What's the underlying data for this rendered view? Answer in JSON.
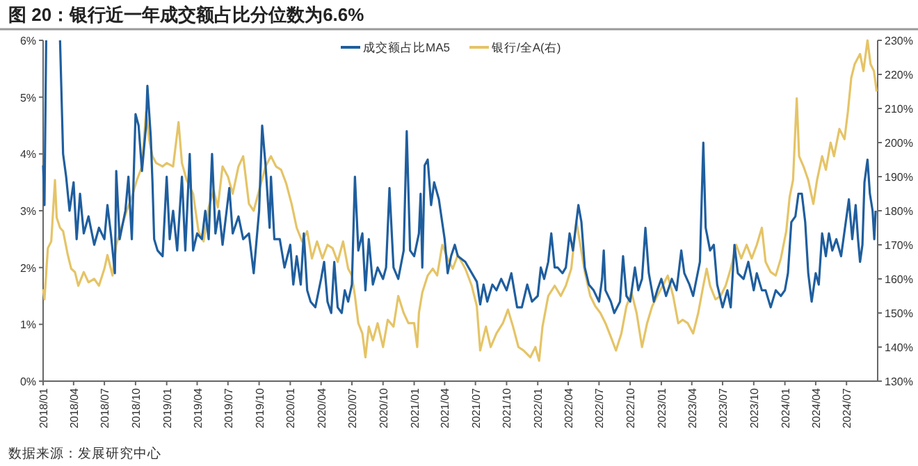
{
  "chart_data": {
    "type": "line",
    "title": "图 20：银行近一年成交额占比分位数为6.6%",
    "annotations": [
      "数据来源：发展研究中心"
    ],
    "xlim": [
      "2018-01-01",
      "2024-10-01"
    ],
    "xticks": [
      {
        "value": "2018-01-01",
        "label": "2018/01"
      },
      {
        "value": "2018-04-01",
        "label": "2018/04"
      },
      {
        "value": "2018-07-01",
        "label": "2018/07"
      },
      {
        "value": "2018-10-01",
        "label": "2018/10"
      },
      {
        "value": "2019-01-01",
        "label": "2019/01"
      },
      {
        "value": "2019-04-01",
        "label": "2019/04"
      },
      {
        "value": "2019-07-01",
        "label": "2019/07"
      },
      {
        "value": "2019-10-01",
        "label": "2019/10"
      },
      {
        "value": "2020-01-01",
        "label": "2020/01"
      },
      {
        "value": "2020-04-01",
        "label": "2020/04"
      },
      {
        "value": "2020-07-01",
        "label": "2020/07"
      },
      {
        "value": "2020-10-01",
        "label": "2020/10"
      },
      {
        "value": "2021-01-01",
        "label": "2021/01"
      },
      {
        "value": "2021-04-01",
        "label": "2021/04"
      },
      {
        "value": "2021-07-01",
        "label": "2021/07"
      },
      {
        "value": "2021-10-01",
        "label": "2021/10"
      },
      {
        "value": "2022-01-01",
        "label": "2022/01"
      },
      {
        "value": "2022-04-01",
        "label": "2022/04"
      },
      {
        "value": "2022-07-01",
        "label": "2022/07"
      },
      {
        "value": "2022-10-01",
        "label": "2022/10"
      },
      {
        "value": "2023-01-01",
        "label": "2023/01"
      },
      {
        "value": "2023-04-01",
        "label": "2023/04"
      },
      {
        "value": "2023-07-01",
        "label": "2023/07"
      },
      {
        "value": "2023-10-01",
        "label": "2023/10"
      },
      {
        "value": "2024-01-01",
        "label": "2024/01"
      },
      {
        "value": "2024-04-01",
        "label": "2024/04"
      },
      {
        "value": "2024-07-01",
        "label": "2024/07"
      }
    ],
    "ylim": [
      0,
      6
    ],
    "yticks": [
      {
        "value": 0,
        "label": "0%"
      },
      {
        "value": 1,
        "label": "1%"
      },
      {
        "value": 2,
        "label": "2%"
      },
      {
        "value": 3,
        "label": "3%"
      },
      {
        "value": 4,
        "label": "4%"
      },
      {
        "value": 5,
        "label": "5%"
      },
      {
        "value": 6,
        "label": "6%"
      }
    ],
    "y2lim": [
      130,
      230
    ],
    "y2ticks": [
      {
        "value": 130,
        "label": "130%"
      },
      {
        "value": 140,
        "label": "140%"
      },
      {
        "value": 150,
        "label": "150%"
      },
      {
        "value": 160,
        "label": "160%"
      },
      {
        "value": 170,
        "label": "170%"
      },
      {
        "value": 180,
        "label": "180%"
      },
      {
        "value": 190,
        "label": "190%"
      },
      {
        "value": 200,
        "label": "200%"
      },
      {
        "value": 210,
        "label": "210%"
      },
      {
        "value": 220,
        "label": "220%"
      },
      {
        "value": 230,
        "label": "230%"
      }
    ],
    "grid": false,
    "legend": "top",
    "marker": "none",
    "line_style": "solid",
    "series": [
      {
        "name": "成交额占比MA5",
        "color": "#1f5e9e",
        "x": [
          "2018-01-01",
          "2018-01-05",
          "2018-01-10",
          "2018-01-25",
          "2018-02-20",
          "2018-03-01",
          "2018-03-10",
          "2018-03-20",
          "2018-04-01",
          "2018-04-10",
          "2018-04-20",
          "2018-05-01",
          "2018-05-15",
          "2018-06-01",
          "2018-06-15",
          "2018-07-01",
          "2018-07-10",
          "2018-07-20",
          "2018-08-01",
          "2018-08-05",
          "2018-08-15",
          "2018-09-01",
          "2018-09-10",
          "2018-09-20",
          "2018-10-01",
          "2018-10-10",
          "2018-10-20",
          "2018-11-01",
          "2018-11-05",
          "2018-11-15",
          "2018-11-20",
          "2018-11-25",
          "2018-12-05",
          "2018-12-20",
          "2019-01-01",
          "2019-01-10",
          "2019-01-20",
          "2019-02-01",
          "2019-02-15",
          "2019-02-25",
          "2019-03-10",
          "2019-03-20",
          "2019-04-01",
          "2019-04-15",
          "2019-04-25",
          "2019-05-05",
          "2019-05-15",
          "2019-05-25",
          "2019-06-05",
          "2019-06-15",
          "2019-06-25",
          "2019-07-05",
          "2019-07-15",
          "2019-08-01",
          "2019-08-15",
          "2019-09-01",
          "2019-09-15",
          "2019-10-01",
          "2019-10-10",
          "2019-10-20",
          "2019-11-01",
          "2019-11-05",
          "2019-11-15",
          "2019-12-01",
          "2019-12-15",
          "2020-01-01",
          "2020-01-10",
          "2020-01-20",
          "2020-02-01",
          "2020-02-10",
          "2020-02-20",
          "2020-03-01",
          "2020-03-15",
          "2020-04-01",
          "2020-04-10",
          "2020-04-20",
          "2020-05-01",
          "2020-05-10",
          "2020-05-20",
          "2020-06-01",
          "2020-06-10",
          "2020-06-20",
          "2020-07-01",
          "2020-07-10",
          "2020-07-20",
          "2020-08-01",
          "2020-08-10",
          "2020-08-20",
          "2020-09-01",
          "2020-09-15",
          "2020-10-01",
          "2020-10-10",
          "2020-10-20",
          "2020-11-01",
          "2020-11-15",
          "2020-12-01",
          "2020-12-10",
          "2020-12-20",
          "2021-01-01",
          "2021-01-15",
          "2021-01-20",
          "2021-01-25",
          "2021-02-01",
          "2021-02-10",
          "2021-02-20",
          "2021-03-01",
          "2021-03-15",
          "2021-04-01",
          "2021-04-10",
          "2021-04-20",
          "2021-05-01",
          "2021-05-10",
          "2021-06-01",
          "2021-07-05",
          "2021-07-15",
          "2021-07-25",
          "2021-08-05",
          "2021-08-20",
          "2021-09-01",
          "2021-09-15",
          "2021-10-01",
          "2021-10-15",
          "2021-11-01",
          "2021-11-15",
          "2021-12-01",
          "2021-12-15",
          "2022-01-01",
          "2022-01-10",
          "2022-01-20",
          "2022-02-01",
          "2022-02-10",
          "2022-02-20",
          "2022-03-01",
          "2022-03-15",
          "2022-03-25",
          "2022-04-05",
          "2022-04-15",
          "2022-05-01",
          "2022-05-10",
          "2022-05-20",
          "2022-06-01",
          "2022-06-15",
          "2022-07-01",
          "2022-07-10",
          "2022-07-15",
          "2022-07-20",
          "2022-08-05",
          "2022-08-15",
          "2022-09-01",
          "2022-09-10",
          "2022-09-20",
          "2022-10-01",
          "2022-10-15",
          "2022-10-25",
          "2022-11-05",
          "2022-11-15",
          "2022-11-25",
          "2022-12-10",
          "2022-12-20",
          "2023-01-01",
          "2023-01-15",
          "2023-02-01",
          "2023-02-15",
          "2023-03-01",
          "2023-03-10",
          "2023-03-25",
          "2023-04-05",
          "2023-04-15",
          "2023-04-25",
          "2023-05-05",
          "2023-05-12",
          "2023-05-25",
          "2023-06-05",
          "2023-06-15",
          "2023-07-01",
          "2023-07-15",
          "2023-07-25",
          "2023-08-05",
          "2023-08-15",
          "2023-09-01",
          "2023-09-15",
          "2023-10-01",
          "2023-10-10",
          "2023-10-25",
          "2023-11-05",
          "2023-11-20",
          "2023-12-05",
          "2023-12-20",
          "2024-01-01",
          "2024-01-10",
          "2024-01-20",
          "2024-02-01",
          "2024-02-10",
          "2024-02-20",
          "2024-03-01",
          "2024-03-10",
          "2024-03-20",
          "2024-04-01",
          "2024-04-10",
          "2024-04-20",
          "2024-05-01",
          "2024-05-10",
          "2024-05-20",
          "2024-06-01",
          "2024-06-15",
          "2024-07-08",
          "2024-07-18",
          "2024-07-28",
          "2024-08-04",
          "2024-08-10",
          "2024-08-17",
          "2024-08-23",
          "2024-09-01",
          "2024-09-08",
          "2024-09-16",
          "2024-09-21",
          "2024-09-25"
        ],
        "values": [
          3.8,
          3.1,
          6.0,
          null,
          6.0,
          4.0,
          3.6,
          3.0,
          3.5,
          2.5,
          3.3,
          2.6,
          2.9,
          2.4,
          2.7,
          2.5,
          3.1,
          2.6,
          1.9,
          3.7,
          2.5,
          3.0,
          3.6,
          2.5,
          4.7,
          4.5,
          3.7,
          4.5,
          5.2,
          4.3,
          3.5,
          2.5,
          2.3,
          2.2,
          3.6,
          2.5,
          3.0,
          2.3,
          3.6,
          2.3,
          4.0,
          2.3,
          2.6,
          2.5,
          3.0,
          2.5,
          4.0,
          2.6,
          3.0,
          2.4,
          2.9,
          3.4,
          2.6,
          2.9,
          2.5,
          2.6,
          1.9,
          3.0,
          4.5,
          3.8,
          2.7,
          3.6,
          2.5,
          2.5,
          2.0,
          2.4,
          1.7,
          2.2,
          1.7,
          2.6,
          1.6,
          1.4,
          1.3,
          1.8,
          2.1,
          1.4,
          1.2,
          2.1,
          1.3,
          1.2,
          1.6,
          1.4,
          1.7,
          3.6,
          2.3,
          2.6,
          1.6,
          2.5,
          1.7,
          2.0,
          1.8,
          2.0,
          3.4,
          2.0,
          1.8,
          2.3,
          4.4,
          2.3,
          2.2,
          2.6,
          3.3,
          2.0,
          3.8,
          3.9,
          3.1,
          3.5,
          3.2,
          2.5,
          1.9,
          2.2,
          2.4,
          2.2,
          2.1,
          1.75,
          1.35,
          1.7,
          1.4,
          1.7,
          1.6,
          1.8,
          1.6,
          1.9,
          1.3,
          1.3,
          1.7,
          1.4,
          1.5,
          2.0,
          1.8,
          2.1,
          2.6,
          2.0,
          2.0,
          1.9,
          2.0,
          2.6,
          2.3,
          3.1,
          2.8,
          2.0,
          1.7,
          1.6,
          1.4,
          1.8,
          2.3,
          1.6,
          1.4,
          1.2,
          1.4,
          2.2,
          1.5,
          1.4,
          2.0,
          1.6,
          1.8,
          2.7,
          1.9,
          1.4,
          1.6,
          1.8,
          1.5,
          1.8,
          1.6,
          2.3,
          1.9,
          1.7,
          1.5,
          1.8,
          2.1,
          4.2,
          2.7,
          2.3,
          2.4,
          1.7,
          1.3,
          1.6,
          1.3,
          2.4,
          1.9,
          1.8,
          2.1,
          1.6,
          1.9,
          1.6,
          1.6,
          1.3,
          1.6,
          1.5,
          1.6,
          1.9,
          2.8,
          2.9,
          3.3,
          3.3,
          2.8,
          1.9,
          1.4,
          1.9,
          1.7,
          2.6,
          2.2,
          2.6,
          2.3,
          2.5,
          2.2,
          3.2,
          2.5,
          3.1,
          2.5,
          2.1,
          2.4,
          3.5,
          3.9,
          3.3,
          3.0,
          2.5,
          3.0
        ]
      },
      {
        "name": "银行/全A(右)",
        "color": "#e5c467",
        "axis": "y2",
        "x": [
          "2018-01-01",
          "2018-01-05",
          "2018-01-15",
          "2018-01-25",
          "2018-02-05",
          "2018-02-10",
          "2018-02-20",
          "2018-03-01",
          "2018-03-15",
          "2018-03-25",
          "2018-04-05",
          "2018-04-15",
          "2018-05-01",
          "2018-05-15",
          "2018-06-01",
          "2018-06-15",
          "2018-07-01",
          "2018-07-10",
          "2018-07-25",
          "2018-08-05",
          "2018-08-20",
          "2018-09-05",
          "2018-09-20",
          "2018-10-05",
          "2018-10-20",
          "2018-11-01",
          "2018-11-10",
          "2018-11-20",
          "2018-12-01",
          "2018-12-20",
          "2019-01-01",
          "2019-01-20",
          "2019-02-05",
          "2019-02-15",
          "2019-03-01",
          "2019-03-20",
          "2019-04-05",
          "2019-04-20",
          "2019-05-05",
          "2019-05-20",
          "2019-06-01",
          "2019-06-15",
          "2019-07-01",
          "2019-07-15",
          "2019-08-01",
          "2019-08-15",
          "2019-09-01",
          "2019-09-15",
          "2019-10-01",
          "2019-10-20",
          "2019-11-05",
          "2019-11-20",
          "2019-12-05",
          "2019-12-20",
          "2020-01-05",
          "2020-01-20",
          "2020-02-05",
          "2020-02-20",
          "2020-03-05",
          "2020-03-20",
          "2020-04-05",
          "2020-04-20",
          "2020-05-05",
          "2020-05-20",
          "2020-06-05",
          "2020-06-20",
          "2020-07-01",
          "2020-07-10",
          "2020-07-20",
          "2020-08-01",
          "2020-08-10",
          "2020-08-20",
          "2020-09-01",
          "2020-09-15",
          "2020-10-01",
          "2020-10-15",
          "2020-11-01",
          "2020-11-15",
          "2020-12-01",
          "2020-12-15",
          "2021-01-01",
          "2021-01-10",
          "2021-01-15",
          "2021-01-25",
          "2021-02-10",
          "2021-02-25",
          "2021-03-10",
          "2021-03-25",
          "2021-04-10",
          "2021-04-25",
          "2021-05-10",
          "2021-06-01",
          "2021-06-20",
          "2021-07-05",
          "2021-07-15",
          "2021-08-01",
          "2021-08-15",
          "2021-09-01",
          "2021-09-20",
          "2021-10-05",
          "2021-10-20",
          "2021-11-05",
          "2021-11-20",
          "2021-12-10",
          "2021-12-25",
          "2022-01-05",
          "2022-01-15",
          "2022-02-01",
          "2022-02-20",
          "2022-03-10",
          "2022-03-25",
          "2022-04-10",
          "2022-04-25",
          "2022-05-05",
          "2022-05-20",
          "2022-06-05",
          "2022-06-20",
          "2022-07-05",
          "2022-07-20",
          "2022-08-05",
          "2022-08-20",
          "2022-09-05",
          "2022-09-20",
          "2022-10-05",
          "2022-10-20",
          "2022-11-05",
          "2022-11-20",
          "2022-12-05",
          "2022-12-20",
          "2023-01-05",
          "2023-01-20",
          "2023-02-05",
          "2023-02-20",
          "2023-03-05",
          "2023-03-20",
          "2023-04-05",
          "2023-04-20",
          "2023-05-05",
          "2023-05-15",
          "2023-05-25",
          "2023-06-10",
          "2023-06-25",
          "2023-07-10",
          "2023-07-25",
          "2023-08-10",
          "2023-08-25",
          "2023-09-10",
          "2023-09-25",
          "2023-10-10",
          "2023-10-25",
          "2023-11-05",
          "2023-11-20",
          "2023-12-05",
          "2023-12-20",
          "2024-01-05",
          "2024-01-15",
          "2024-01-25",
          "2024-02-05",
          "2024-02-12",
          "2024-02-25",
          "2024-03-10",
          "2024-03-25",
          "2024-04-05",
          "2024-04-20",
          "2024-05-01",
          "2024-05-15",
          "2024-05-25",
          "2024-06-10",
          "2024-06-25",
          "2024-07-05",
          "2024-07-15",
          "2024-07-25",
          "2024-08-10",
          "2024-08-20",
          "2024-09-01",
          "2024-09-10",
          "2024-09-20",
          "2024-09-28"
        ],
        "values": [
          157,
          154,
          169,
          171,
          189,
          178,
          175,
          174,
          167,
          163,
          162,
          158,
          162,
          159,
          160,
          158,
          163,
          167,
          161,
          170,
          175,
          180,
          184,
          189,
          193,
          209,
          201,
          196,
          194,
          193,
          194,
          193,
          206,
          194,
          189,
          185,
          174,
          171,
          181,
          186,
          181,
          193,
          190,
          185,
          193,
          196,
          182,
          180,
          186,
          193,
          196,
          193,
          192,
          188,
          182,
          175,
          171,
          174,
          166,
          171,
          166,
          170,
          169,
          165,
          171,
          163,
          161,
          155,
          147,
          144,
          137,
          146,
          142,
          147,
          140,
          148,
          146,
          155,
          150,
          147,
          147,
          140,
          150,
          156,
          161,
          163,
          161,
          170,
          166,
          163,
          167,
          163,
          158,
          152,
          139,
          146,
          140,
          144,
          147,
          151,
          146,
          140,
          139,
          137,
          140,
          136,
          146,
          155,
          158,
          155,
          158,
          163,
          177,
          171,
          162,
          155,
          152,
          150,
          147,
          143,
          139,
          144,
          152,
          156,
          150,
          140,
          147,
          152,
          155,
          158,
          161,
          155,
          147,
          148,
          147,
          144,
          150,
          158,
          163,
          158,
          154,
          155,
          158,
          163,
          170,
          166,
          170,
          166,
          170,
          175,
          165,
          162,
          161,
          166,
          174,
          184,
          189,
          213,
          196,
          193,
          189,
          182,
          189,
          196,
          192,
          200,
          196,
          204,
          201,
          209,
          219,
          223,
          226,
          221,
          230,
          223,
          221,
          215
        ]
      }
    ]
  }
}
